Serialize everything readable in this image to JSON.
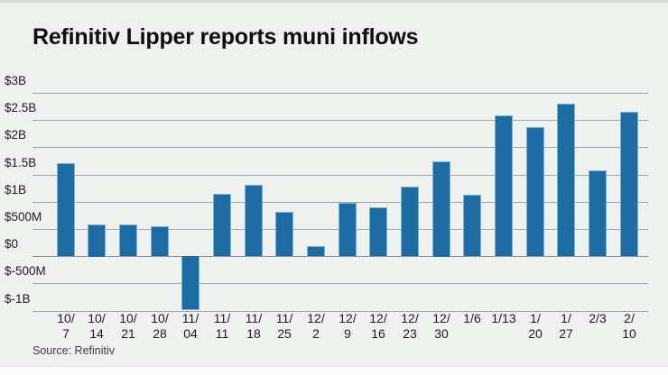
{
  "chart_data": {
    "type": "bar",
    "title": "Refinitiv Lipper reports muni inflows",
    "source": "Source: Refinitiv",
    "unit": "USD billions",
    "categories": [
      "10/7",
      "10/14",
      "10/21",
      "10/28",
      "11/04",
      "11/11",
      "11/18",
      "11/25",
      "12/2",
      "12/9",
      "12/16",
      "12/23",
      "12/30",
      "1/6",
      "1/13",
      "1/20",
      "1/27",
      "2/3",
      "2/10"
    ],
    "category_display_lines": [
      [
        "10/",
        "7"
      ],
      [
        "10/",
        "14"
      ],
      [
        "10/",
        "21"
      ],
      [
        "10/",
        "28"
      ],
      [
        "11/",
        "04"
      ],
      [
        "11/",
        "11"
      ],
      [
        "11/",
        "18"
      ],
      [
        "11/",
        "25"
      ],
      [
        "12/",
        "2"
      ],
      [
        "12/",
        "9"
      ],
      [
        "12/",
        "16"
      ],
      [
        "12/",
        "23"
      ],
      [
        "12/",
        "30"
      ],
      [
        "1/6"
      ],
      [
        "1/13"
      ],
      [
        "1/",
        "20"
      ],
      [
        "1/",
        "27"
      ],
      [
        "2/3"
      ],
      [
        "2/",
        "10"
      ]
    ],
    "values_billions": [
      1.71,
      0.59,
      0.58,
      0.55,
      -1.0,
      1.15,
      1.31,
      0.81,
      0.18,
      0.98,
      0.9,
      1.27,
      1.75,
      1.13,
      2.58,
      2.37,
      2.8,
      1.57,
      2.65
    ],
    "y_ticks": [
      {
        "label": "$3B",
        "value": 3
      },
      {
        "label": "$2.5B",
        "value": 2.5
      },
      {
        "label": "$2B",
        "value": 2
      },
      {
        "label": "$1.5B",
        "value": 1.5
      },
      {
        "label": "$1B",
        "value": 1
      },
      {
        "label": "$500M",
        "value": 0.5
      },
      {
        "label": "$0",
        "value": 0
      },
      {
        "label": "$-500M",
        "value": -0.5
      },
      {
        "label": "$-1B",
        "value": -1
      }
    ],
    "ylim": [
      -1,
      3
    ],
    "grid": true,
    "legend": false,
    "colors": {
      "bar_fill": "#1d6ba3",
      "bar_border": "#7ab3da",
      "grid_line": "#a2a5a3",
      "background": "#eff1ef",
      "title_text": "#0e0e0e",
      "axis_text": "#1c1c1c"
    }
  }
}
